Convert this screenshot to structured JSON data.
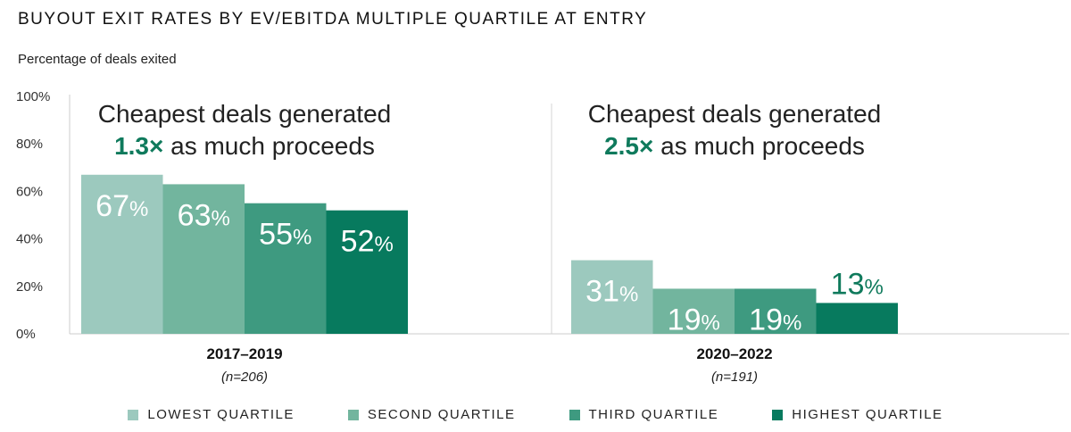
{
  "title": "BUYOUT EXIT RATES BY EV/EBITDA MULTIPLE QUARTILE AT ENTRY",
  "subtitle": "Percentage of deals exited",
  "chart_data": {
    "type": "bar",
    "title": "BUYOUT EXIT RATES BY EV/EBITDA MULTIPLE QUARTILE AT ENTRY",
    "ylabel": "Percentage of deals exited",
    "ylim": [
      0,
      100
    ],
    "yticks": [
      "0%",
      "20%",
      "40%",
      "60%",
      "80%",
      "100%"
    ],
    "grid": false,
    "legend_position": "bottom",
    "categories": [
      {
        "label": "2017–2019",
        "n": "(n=206)"
      },
      {
        "label": "2020–2022",
        "n": "(n=191)"
      }
    ],
    "series": [
      {
        "name": "LOWEST QUARTILE",
        "color": "#9cc9be",
        "values": [
          67,
          31
        ]
      },
      {
        "name": "SECOND QUARTILE",
        "color": "#72b59e",
        "values": [
          63,
          19
        ]
      },
      {
        "name": "THIRD QUARTILE",
        "color": "#3e9a80",
        "values": [
          55,
          19
        ]
      },
      {
        "name": "HIGHEST QUARTILE",
        "color": "#077a5e",
        "values": [
          52,
          13
        ]
      }
    ],
    "annotations": [
      {
        "line1": "Cheapest deals generated",
        "multiple": "1.3×",
        "rest": " as much proceeds"
      },
      {
        "line1": "Cheapest deals generated",
        "multiple": "2.5×",
        "rest": " as much proceeds"
      }
    ]
  }
}
